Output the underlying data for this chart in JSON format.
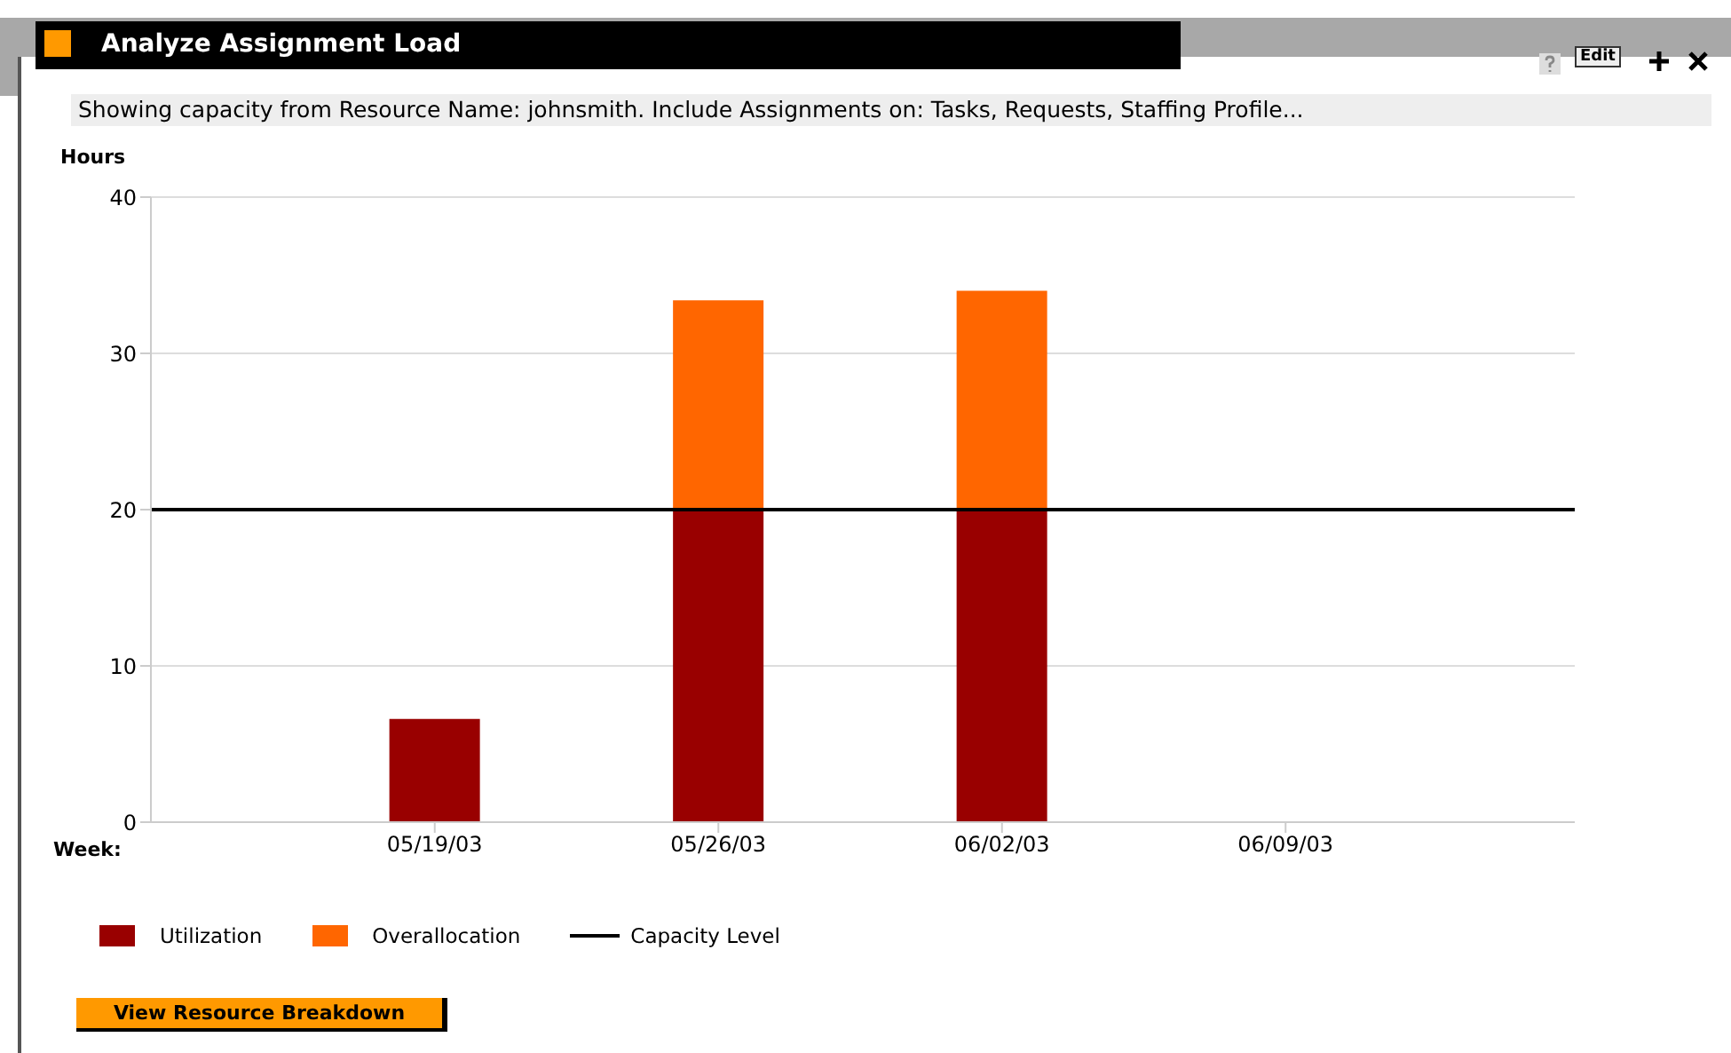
{
  "chart_data": {
    "type": "bar",
    "title": "Analyze Assignment Load",
    "subtitle": "Showing capacity from Resource Name: johnsmith. Include Assignments on: Tasks, Requests, Staffing Profile...",
    "xlabel": "Week:",
    "ylabel": "Hours",
    "categories": [
      "05/19/03",
      "05/26/03",
      "06/02/03",
      "06/09/03"
    ],
    "series": [
      {
        "name": "Utilization",
        "color": "#990000",
        "values": [
          6.6,
          20,
          20,
          null
        ]
      },
      {
        "name": "Overallocation",
        "color": "#ff6600",
        "values": [
          0,
          13.4,
          14.0,
          null
        ]
      }
    ],
    "stacked": true,
    "ylim": [
      0,
      40
    ],
    "yticks": [
      0,
      10,
      20,
      30,
      40
    ],
    "grid": "y",
    "legend": "bottom left",
    "ref_lines": [
      {
        "axis": "y",
        "value": 20,
        "label": "Capacity Level",
        "color": "#000000"
      }
    ],
    "annotations": [
      "Edit",
      "View Resource Breakdown"
    ]
  }
}
